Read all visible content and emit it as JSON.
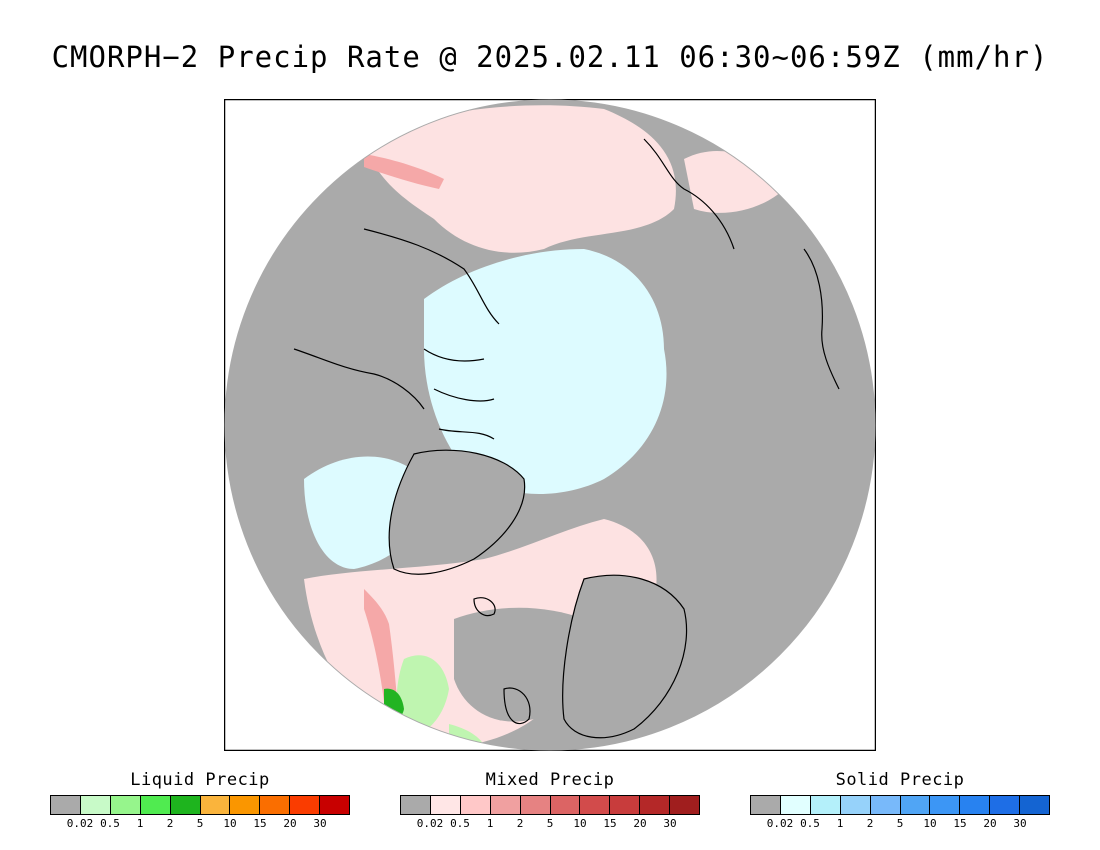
{
  "title": "CMORPH−2 Precip Rate @ 2025.02.11 06:30~06:59Z (mm/hr)",
  "map": {
    "colors": {
      "no_precip": "#aaaaaa",
      "mixed_light": "#fde2e2",
      "mixed_mid": "#f5a8a8",
      "mixed_strong": "#e07a7a",
      "solid_light": "#ddfbff",
      "liquid_light": "#bff5b0",
      "liquid_heavy": "#22b422",
      "coast": "#000000"
    }
  },
  "legends": [
    {
      "title": "Liquid Precip",
      "colors": [
        "#aaaaaa",
        "#c8fac8",
        "#96f58c",
        "#50eb50",
        "#1eb41e",
        "#fab43c",
        "#fa9600",
        "#fa6e00",
        "#fa3c00",
        "#c80000"
      ],
      "ticks": [
        "0.02",
        "0.5",
        "1",
        "2",
        "5",
        "10",
        "15",
        "20",
        "30"
      ]
    },
    {
      "title": "Mixed Precip",
      "colors": [
        "#aaaaaa",
        "#ffe6e6",
        "#ffc8c8",
        "#f0a0a0",
        "#e68282",
        "#dc6464",
        "#d24b4b",
        "#c83c3c",
        "#b42828",
        "#a01e1e"
      ],
      "ticks": [
        "0.02",
        "0.5",
        "1",
        "2",
        "5",
        "10",
        "15",
        "20",
        "30"
      ]
    },
    {
      "title": "Solid Precip",
      "colors": [
        "#aaaaaa",
        "#e1ffff",
        "#b4f0fa",
        "#96d2fa",
        "#78b9fa",
        "#50a5f5",
        "#3c96f5",
        "#2882f0",
        "#1e6ee6",
        "#1464d2"
      ],
      "ticks": [
        "0.02",
        "0.5",
        "1",
        "2",
        "5",
        "10",
        "15",
        "20",
        "30"
      ]
    }
  ]
}
